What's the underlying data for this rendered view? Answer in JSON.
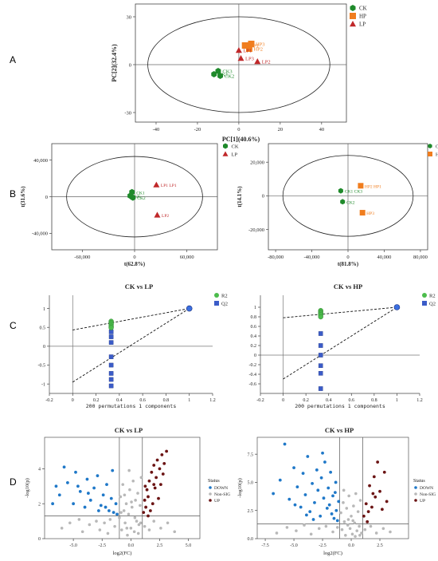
{
  "panels": [
    {
      "letter": "A"
    },
    {
      "letter": "B"
    },
    {
      "letter": "C"
    },
    {
      "letter": "D"
    }
  ],
  "colors": {
    "ck": "#1f8a2b",
    "hp": "#f07d1e",
    "lp": "#c0282a",
    "down": "#1f78c8",
    "up": "#6b1414",
    "nonsig": "#b8b8b8",
    "r2": "#4cbc4c",
    "q2": "#3b5cc8"
  },
  "chart_data": [
    {
      "id": "A",
      "type": "scatter",
      "xlabel": "PC[1](40.6%)",
      "ylabel": "PC[2](32.4%)",
      "xlim": [
        -50,
        52
      ],
      "ylim": [
        -36,
        38
      ],
      "xticks": [
        -40,
        -20,
        0,
        20,
        40
      ],
      "yticks": [
        -30,
        0,
        30
      ],
      "ellipse": {
        "rx": 44,
        "ry": 30
      },
      "legend": [
        "CK",
        "HP",
        "LP"
      ],
      "series": [
        {
          "name": "CK",
          "marker": "hexagon",
          "points": [
            {
              "x": -12,
              "y": -6,
              "label": "CK1"
            },
            {
              "x": -10,
              "y": -4,
              "label": "CK3"
            },
            {
              "x": -9,
              "y": -7,
              "label": "CK2"
            }
          ]
        },
        {
          "name": "HP",
          "marker": "square",
          "points": [
            {
              "x": 3,
              "y": 12,
              "label": "HP1"
            },
            {
              "x": 5,
              "y": 10,
              "label": "HP2"
            },
            {
              "x": 6,
              "y": 13,
              "label": "HP3"
            }
          ]
        },
        {
          "name": "LP",
          "marker": "triangle",
          "points": [
            {
              "x": 0,
              "y": 9,
              "label": "LP1"
            },
            {
              "x": 1,
              "y": 4,
              "label": "LP3"
            },
            {
              "x": 9,
              "y": 2,
              "label": "LP2"
            }
          ]
        }
      ]
    },
    {
      "id": "B1",
      "type": "scatter",
      "xlabel": "t(62.8%)",
      "ylabel": "t(31.6%)",
      "xlim": [
        -95000,
        95000
      ],
      "ylim": [
        -58000,
        58000
      ],
      "xticks": [
        -60000,
        0,
        60000
      ],
      "xtick_labels": [
        "-60,000",
        "0",
        "60,000"
      ],
      "yticks": [
        -40000,
        0,
        40000
      ],
      "ytick_labels": [
        "-40,000",
        "0",
        "40,000"
      ],
      "ellipse": {
        "rx": 78000,
        "ry": 44000
      },
      "legend": [
        "CK",
        "LP"
      ],
      "series": [
        {
          "name": "CK",
          "marker": "hexagon",
          "points": [
            {
              "x": -5000,
              "y": 1000,
              "label": "CK"
            },
            {
              "x": -3000,
              "y": 5000,
              "label": "CK1"
            },
            {
              "x": -2000,
              "y": -1000,
              "label": "CK2"
            }
          ]
        },
        {
          "name": "LP",
          "marker": "triangle",
          "points": [
            {
              "x": 25000,
              "y": 13000,
              "label": "LP1 LP1"
            },
            {
              "x": 26000,
              "y": -20000,
              "label": "LP2"
            }
          ]
        }
      ]
    },
    {
      "id": "B2",
      "type": "scatter",
      "xlabel": "t(81.8%)",
      "ylabel": "t(14.1%)",
      "xlim": [
        -88000,
        88000
      ],
      "ylim": [
        -32000,
        31000
      ],
      "xticks": [
        -80000,
        -40000,
        0,
        40000,
        80000
      ],
      "xtick_labels": [
        "-80,000",
        "-40,000",
        "0",
        "40,000",
        "80,000"
      ],
      "yticks": [
        -20000,
        0,
        20000
      ],
      "ytick_labels": [
        "-20,000",
        "0",
        "20,000"
      ],
      "ellipse": {
        "rx": 72000,
        "ry": 24000
      },
      "legend": [
        "CK",
        "HP"
      ],
      "series": [
        {
          "name": "CK",
          "marker": "hexagon",
          "points": [
            {
              "x": -8000,
              "y": 3000,
              "label": "CK1 CK3"
            },
            {
              "x": -6000,
              "y": -3500,
              "label": "CK2"
            }
          ]
        },
        {
          "name": "HP",
          "marker": "square",
          "points": [
            {
              "x": 14000,
              "y": 6000,
              "label": "HP2 HP1"
            },
            {
              "x": 16000,
              "y": -10000,
              "label": "HP3"
            }
          ]
        }
      ]
    },
    {
      "id": "C1",
      "type": "scatter",
      "title": "CK vs LP",
      "xlabel": "200 permutations 1 components",
      "xlim": [
        -0.2,
        1.2
      ],
      "ylim": [
        -1.25,
        1.35
      ],
      "xticks": [
        -0.2,
        0,
        0.2,
        0.4,
        0.6,
        0.8,
        1,
        1.2
      ],
      "xtick_labels": [
        "-0.2",
        "0",
        "0.2",
        "0.4",
        "0.6",
        "0.8",
        "1",
        "1.2"
      ],
      "yticks": [
        -1,
        -0.5,
        0,
        0.5,
        1
      ],
      "ytick_labels": [
        "-1",
        "-0.5",
        "0",
        "0.5",
        "1"
      ],
      "legend": [
        "R2",
        "Q2"
      ],
      "r2_x": 0.33,
      "r2_values": [
        0.66,
        0.62,
        0.58,
        0.53,
        0.49
      ],
      "q2_x": 0.33,
      "q2_values": [
        0.38,
        0.25,
        0.1,
        -0.28,
        -0.5,
        -0.72,
        -0.88,
        -1.05
      ],
      "r2_line": [
        [
          0,
          0.43
        ],
        [
          1,
          1
        ]
      ],
      "q2_line": [
        [
          0,
          -0.95
        ],
        [
          1,
          1
        ]
      ],
      "final": [
        1,
        1
      ]
    },
    {
      "id": "C2",
      "type": "scatter",
      "title": "CK vs HP",
      "xlabel": "200 permutations 1 components",
      "xlim": [
        -0.2,
        1.2
      ],
      "ylim": [
        -0.8,
        1.25
      ],
      "xticks": [
        -0.2,
        0,
        0.2,
        0.4,
        0.6,
        0.8,
        1,
        1.2
      ],
      "xtick_labels": [
        "-0.2",
        "0",
        "0.2",
        "0.4",
        "0.6",
        "0.8",
        "1",
        "1.2"
      ],
      "yticks": [
        -0.6,
        -0.4,
        -0.2,
        0,
        0.2,
        0.4,
        0.6,
        0.8,
        1
      ],
      "ytick_labels": [
        "-0.6",
        "-0.4",
        "-0.2",
        "0",
        "0.2",
        "0.4",
        "0.6",
        "0.8",
        "1"
      ],
      "legend": [
        "R2",
        "Q2"
      ],
      "r2_x": 0.33,
      "r2_values": [
        0.93,
        0.9,
        0.87,
        0.84,
        0.8
      ],
      "q2_x": 0.33,
      "q2_values": [
        0.45,
        0.2,
        0.0,
        -0.22,
        -0.38,
        -0.7
      ],
      "r2_line": [
        [
          0,
          0.78
        ],
        [
          1,
          1
        ]
      ],
      "q2_line": [
        [
          0,
          -0.5
        ],
        [
          1,
          1
        ]
      ],
      "final": [
        1,
        1
      ]
    },
    {
      "id": "D1",
      "type": "scatter",
      "title": "CK vs LP",
      "xlabel": "log2(FC)",
      "ylabel": "-log10(p)",
      "xlim": [
        -7.5,
        6
      ],
      "ylim": [
        0,
        5.8
      ],
      "xticks": [
        -5,
        -2.5,
        0,
        2.5,
        5
      ],
      "xtick_labels": [
        "-5.0",
        "-2.5",
        "0.0",
        "2.5",
        "5.0"
      ],
      "yticks": [
        0,
        2,
        4
      ],
      "ytick_labels": [
        "0",
        "2",
        "4"
      ],
      "vlines": [
        -1,
        1
      ],
      "hline": 1.3,
      "legend_title": "Status",
      "legend": [
        "DOWN",
        "Non-SIG",
        "UP"
      ],
      "down": [
        [
          -6.8,
          2.0
        ],
        [
          -6.5,
          3.0
        ],
        [
          -6.2,
          2.5
        ],
        [
          -5.8,
          4.1
        ],
        [
          -5.5,
          3.2
        ],
        [
          -5.0,
          2.0
        ],
        [
          -4.8,
          3.8
        ],
        [
          -4.4,
          2.7
        ],
        [
          -4.0,
          1.8
        ],
        [
          -3.8,
          3.4
        ],
        [
          -3.5,
          2.2
        ],
        [
          -3.2,
          2.9
        ],
        [
          -2.9,
          3.6
        ],
        [
          -2.6,
          1.9
        ],
        [
          -2.4,
          2.5
        ],
        [
          -2.1,
          3.1
        ],
        [
          -1.9,
          1.6
        ],
        [
          -1.7,
          2.3
        ],
        [
          -1.5,
          1.5
        ],
        [
          -1.3,
          2.0
        ],
        [
          -1.2,
          1.4
        ],
        [
          -2.8,
          1.6
        ],
        [
          -3.7,
          2.6
        ],
        [
          -4.6,
          3.0
        ],
        [
          -2.2,
          1.8
        ],
        [
          -1.6,
          3.9
        ]
      ],
      "up": [
        [
          1.1,
          1.5
        ],
        [
          1.2,
          2.2
        ],
        [
          1.3,
          1.8
        ],
        [
          1.4,
          2.8
        ],
        [
          1.5,
          2.4
        ],
        [
          1.6,
          3.3
        ],
        [
          1.7,
          1.6
        ],
        [
          1.8,
          3.8
        ],
        [
          1.9,
          2.0
        ],
        [
          2.0,
          4.2
        ],
        [
          2.1,
          2.9
        ],
        [
          2.2,
          3.5
        ],
        [
          2.3,
          4.5
        ],
        [
          2.4,
          2.3
        ],
        [
          2.5,
          4.0
        ],
        [
          2.6,
          3.1
        ],
        [
          2.7,
          4.8
        ],
        [
          2.8,
          3.7
        ],
        [
          2.9,
          4.3
        ],
        [
          3.1,
          5.0
        ],
        [
          1.5,
          1.3
        ],
        [
          1.25,
          3.0
        ],
        [
          2.0,
          3.1
        ]
      ],
      "nonsig": [
        [
          -6.0,
          0.6
        ],
        [
          -5.3,
          0.9
        ],
        [
          -4.5,
          1.1
        ],
        [
          -4.2,
          0.4
        ],
        [
          -3.6,
          0.8
        ],
        [
          -3.0,
          1.0
        ],
        [
          -2.7,
          0.5
        ],
        [
          -2.3,
          0.9
        ],
        [
          -2.0,
          0.3
        ],
        [
          -1.8,
          1.1
        ],
        [
          -1.4,
          0.7
        ],
        [
          -1.0,
          1.2
        ],
        [
          -0.9,
          2.4
        ],
        [
          -0.8,
          0.5
        ],
        [
          -0.7,
          3.1
        ],
        [
          -0.6,
          1.6
        ],
        [
          -0.5,
          0.9
        ],
        [
          -0.4,
          2.0
        ],
        [
          -0.3,
          0.2
        ],
        [
          -0.2,
          1.4
        ],
        [
          -0.1,
          2.8
        ],
        [
          0.0,
          0.6
        ],
        [
          0.1,
          1.8
        ],
        [
          0.2,
          3.3
        ],
        [
          0.3,
          0.4
        ],
        [
          0.4,
          2.2
        ],
        [
          0.5,
          1.0
        ],
        [
          0.6,
          2.6
        ],
        [
          0.7,
          0.8
        ],
        [
          0.8,
          1.9
        ],
        [
          0.9,
          3.5
        ],
        [
          1.2,
          0.7
        ],
        [
          1.6,
          0.5
        ],
        [
          2.0,
          1.0
        ],
        [
          2.6,
          0.6
        ],
        [
          3.2,
          0.9
        ],
        [
          3.8,
          0.4
        ],
        [
          -0.15,
          3.9
        ],
        [
          0.35,
          1.2
        ],
        [
          -0.55,
          2.5
        ],
        [
          0.65,
          0.3
        ],
        [
          0.05,
          2.1
        ],
        [
          -0.85,
          1.5
        ],
        [
          0.85,
          0.9
        ],
        [
          -0.35,
          0.6
        ]
      ]
    },
    {
      "id": "D2",
      "type": "scatter",
      "title": "CK vs HP",
      "xlabel": "log2(FC)",
      "ylabel": "-log10(p)",
      "xlim": [
        -8.2,
        5
      ],
      "ylim": [
        0,
        9
      ],
      "xticks": [
        -7.5,
        -5,
        -2.5,
        0,
        2.5
      ],
      "xtick_labels": [
        "-7.5",
        "-5.0",
        "-2.5",
        "0.0",
        "2.5"
      ],
      "yticks": [
        0,
        2.5,
        5,
        7.5
      ],
      "ytick_labels": [
        "0.0",
        "2.5",
        "5.0",
        "7.5"
      ],
      "vlines": [
        -1,
        1
      ],
      "hline": 1.3,
      "legend_title": "Status",
      "legend": [
        "DOWN",
        "Non-SIG",
        "UP"
      ],
      "down": [
        [
          -6.8,
          4.0
        ],
        [
          -6.2,
          5.2
        ],
        [
          -5.8,
          8.4
        ],
        [
          -5.4,
          3.5
        ],
        [
          -5.0,
          6.3
        ],
        [
          -4.7,
          4.6
        ],
        [
          -4.4,
          2.8
        ],
        [
          -4.2,
          5.8
        ],
        [
          -4.0,
          3.9
        ],
        [
          -3.8,
          7.3
        ],
        [
          -3.6,
          2.4
        ],
        [
          -3.4,
          4.9
        ],
        [
          -3.2,
          3.2
        ],
        [
          -3.0,
          6.1
        ],
        [
          -2.9,
          4.3
        ],
        [
          -2.7,
          2.0
        ],
        [
          -2.6,
          5.4
        ],
        [
          -2.4,
          3.6
        ],
        [
          -2.3,
          6.8
        ],
        [
          -2.1,
          2.7
        ],
        [
          -2.0,
          4.5
        ],
        [
          -1.9,
          3.0
        ],
        [
          -1.8,
          5.9
        ],
        [
          -1.7,
          2.2
        ],
        [
          -1.6,
          3.8
        ],
        [
          -1.5,
          1.8
        ],
        [
          -1.4,
          4.1
        ],
        [
          -1.3,
          2.5
        ],
        [
          -1.2,
          1.6
        ],
        [
          -1.1,
          3.3
        ],
        [
          -3.9,
          2.1
        ],
        [
          -4.9,
          3.0
        ],
        [
          -2.5,
          7.6
        ],
        [
          -3.3,
          1.7
        ],
        [
          -1.35,
          5.0
        ]
      ],
      "up": [
        [
          1.1,
          2.0
        ],
        [
          1.3,
          3.1
        ],
        [
          1.5,
          2.4
        ],
        [
          1.6,
          4.7
        ],
        [
          1.8,
          2.8
        ],
        [
          2.0,
          5.5
        ],
        [
          2.1,
          3.7
        ],
        [
          2.3,
          6.8
        ],
        [
          2.5,
          4.2
        ],
        [
          2.7,
          2.6
        ],
        [
          2.9,
          5.9
        ],
        [
          3.1,
          3.3
        ],
        [
          1.4,
          1.5
        ],
        [
          1.9,
          4.0
        ]
      ],
      "nonsig": [
        [
          -6.5,
          0.5
        ],
        [
          -5.6,
          1.0
        ],
        [
          -4.8,
          0.7
        ],
        [
          -4.1,
          1.2
        ],
        [
          -3.5,
          0.4
        ],
        [
          -2.8,
          0.9
        ],
        [
          -2.2,
          1.1
        ],
        [
          -1.6,
          0.6
        ],
        [
          -1.2,
          1.0
        ],
        [
          -0.9,
          2.3
        ],
        [
          -0.8,
          0.8
        ],
        [
          -0.7,
          3.2
        ],
        [
          -0.6,
          1.5
        ],
        [
          -0.5,
          0.3
        ],
        [
          -0.4,
          2.7
        ],
        [
          -0.3,
          1.2
        ],
        [
          -0.2,
          3.8
        ],
        [
          -0.1,
          0.9
        ],
        [
          0.0,
          2.0
        ],
        [
          0.1,
          0.4
        ],
        [
          0.2,
          2.9
        ],
        [
          0.3,
          1.4
        ],
        [
          0.4,
          4.0
        ],
        [
          0.5,
          0.7
        ],
        [
          0.6,
          2.4
        ],
        [
          0.7,
          1.1
        ],
        [
          0.8,
          3.4
        ],
        [
          0.9,
          0.5
        ],
        [
          1.2,
          0.8
        ],
        [
          1.7,
          1.1
        ],
        [
          2.2,
          0.5
        ],
        [
          2.8,
          0.9
        ],
        [
          3.4,
          0.6
        ],
        [
          -0.25,
          1.7
        ],
        [
          0.35,
          0.2
        ],
        [
          -0.65,
          4.3
        ],
        [
          0.15,
          1.6
        ],
        [
          0.75,
          0.3
        ]
      ]
    }
  ]
}
